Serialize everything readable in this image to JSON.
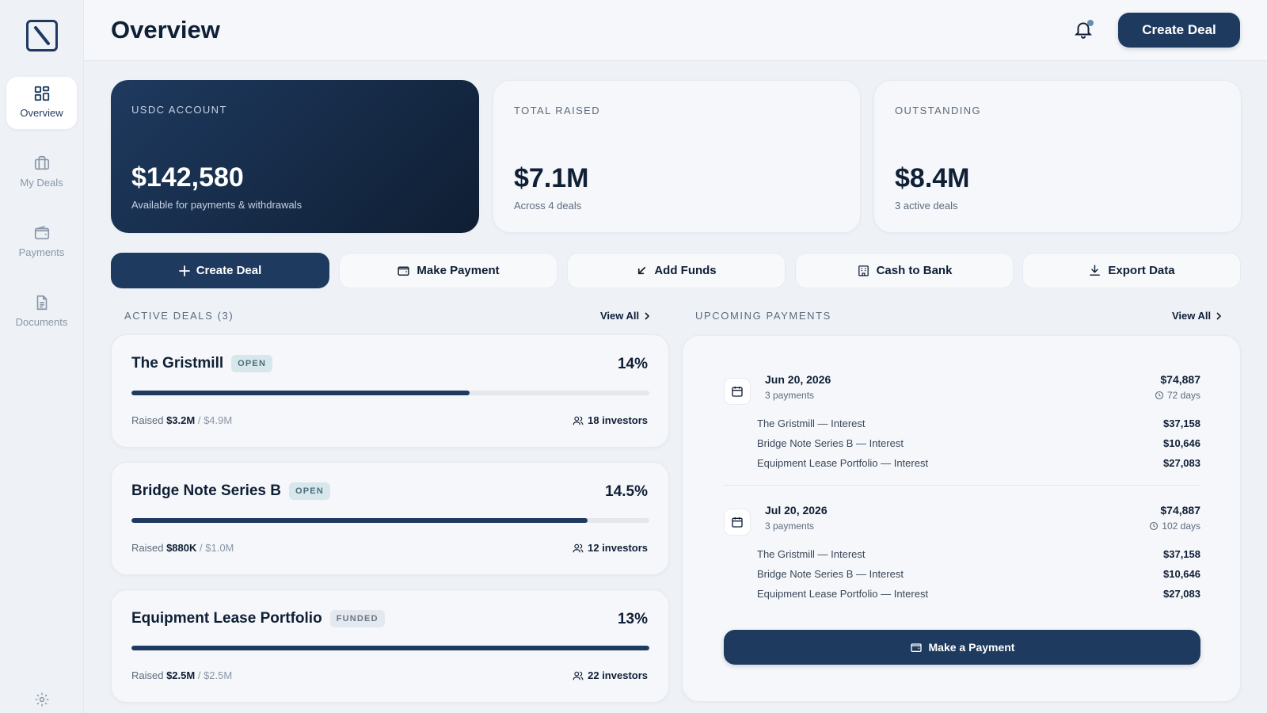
{
  "app": {
    "title": "Overview"
  },
  "nav": {
    "items": [
      {
        "label": "Overview",
        "icon": "grid-icon",
        "active": true
      },
      {
        "label": "My Deals",
        "icon": "briefcase-icon"
      },
      {
        "label": "Payments",
        "icon": "wallet-icon"
      },
      {
        "label": "Documents",
        "icon": "document-icon"
      }
    ],
    "settings_icon": "gear-icon"
  },
  "header": {
    "create_label": "Create Deal",
    "bell_icon": "bell-icon"
  },
  "stats": [
    {
      "label": "USDC ACCOUNT",
      "value": "$142,580",
      "sub": "Available for payments & withdrawals"
    },
    {
      "label": "TOTAL RAISED",
      "value": "$7.1M",
      "sub": "Across 4 deals"
    },
    {
      "label": "OUTSTANDING",
      "value": "$8.4M",
      "sub": "3 active deals"
    }
  ],
  "actions": [
    {
      "label": "Create Deal",
      "icon": "plus-icon"
    },
    {
      "label": "Make Payment",
      "icon": "wallet-icon"
    },
    {
      "label": "Add Funds",
      "icon": "arrow-down-left-icon"
    },
    {
      "label": "Cash to Bank",
      "icon": "bank-icon"
    },
    {
      "label": "Export Data",
      "icon": "download-icon"
    }
  ],
  "deals_section": {
    "title": "ACTIVE DEALS (3)",
    "view_all": "View All"
  },
  "deals": [
    {
      "name": "The Gristmill",
      "badge": "OPEN",
      "rate": "14%",
      "raised": "$3.2M",
      "total": "$4.9M",
      "progress": 0.653,
      "investors": "18 investors"
    },
    {
      "name": "Bridge Note Series B",
      "badge": "OPEN",
      "rate": "14.5%",
      "raised": "$880K",
      "total": "$1.0M",
      "progress": 0.88,
      "investors": "12 investors"
    },
    {
      "name": "Equipment Lease Portfolio",
      "badge": "FUNDED",
      "rate": "13%",
      "raised": "$2.5M",
      "total": "$2.5M",
      "progress": 1.0,
      "investors": "22 investors"
    }
  ],
  "payments_section": {
    "title": "UPCOMING PAYMENTS",
    "view_all": "View All"
  },
  "payments": [
    {
      "date": "Jun 20, 2026",
      "count": "3 payments",
      "amount": "$74,887",
      "days": "72 days",
      "rows": [
        {
          "label": "The Gristmill — Interest",
          "amount": "$37,158"
        },
        {
          "label": "Bridge Note Series B — Interest",
          "amount": "$10,646"
        },
        {
          "label": "Equipment Lease Portfolio — Interest",
          "amount": "$27,083"
        }
      ]
    },
    {
      "date": "Jul 20, 2026",
      "count": "3 payments",
      "amount": "$74,887",
      "days": "102 days",
      "rows": [
        {
          "label": "The Gristmill — Interest",
          "amount": "$37,158"
        },
        {
          "label": "Bridge Note Series B — Interest",
          "amount": "$10,646"
        },
        {
          "label": "Equipment Lease Portfolio — Interest",
          "amount": "$27,083"
        }
      ]
    }
  ],
  "make_payment_label": "Make a Payment",
  "colors": {
    "primary": "#1e3a5f",
    "background": "#eef2f7",
    "open_badge": "#d6e8ec"
  }
}
